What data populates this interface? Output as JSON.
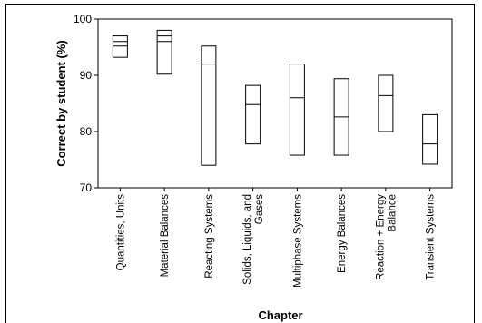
{
  "chart_data": {
    "type": "boxplot",
    "title": "",
    "xlabel": "Chapter",
    "ylabel": "Correct by student (%)",
    "ylim": [
      70,
      100
    ],
    "yticks": [
      70,
      80,
      90,
      100
    ],
    "grid": false,
    "legend": "none",
    "categories": [
      {
        "lines": [
          "Quantities, Units"
        ]
      },
      {
        "lines": [
          "Material Balances"
        ]
      },
      {
        "lines": [
          "Reacting Systems"
        ]
      },
      {
        "lines": [
          "Solids, Liquids, and",
          "Gases"
        ]
      },
      {
        "lines": [
          "Multiphase Systems"
        ]
      },
      {
        "lines": [
          "Energy Balances"
        ]
      },
      {
        "lines": [
          "Reaction + Energy",
          "Balance"
        ]
      },
      {
        "lines": [
          "Transient Systems"
        ]
      }
    ],
    "series": [
      {
        "boxes": [
          {
            "low": 93.2,
            "high": 97.0,
            "mid": 96.0,
            "mid2": 95.2
          },
          {
            "low": 90.2,
            "high": 98.0,
            "mid": 96.0,
            "mid2": 97.0
          },
          {
            "low": 74.0,
            "high": 95.2,
            "mid": 92.0
          },
          {
            "low": 77.8,
            "high": 88.2,
            "mid": 84.8
          },
          {
            "low": 75.8,
            "high": 92.0,
            "mid": 86.0
          },
          {
            "low": 75.8,
            "high": 89.4,
            "mid": 82.6
          },
          {
            "low": 80.0,
            "high": 90.0,
            "mid": 86.4
          },
          {
            "low": 74.2,
            "high": 83.0,
            "mid": 77.8
          }
        ]
      }
    ],
    "colors": {
      "stroke": "#000000",
      "fill": "#ffffff"
    }
  }
}
